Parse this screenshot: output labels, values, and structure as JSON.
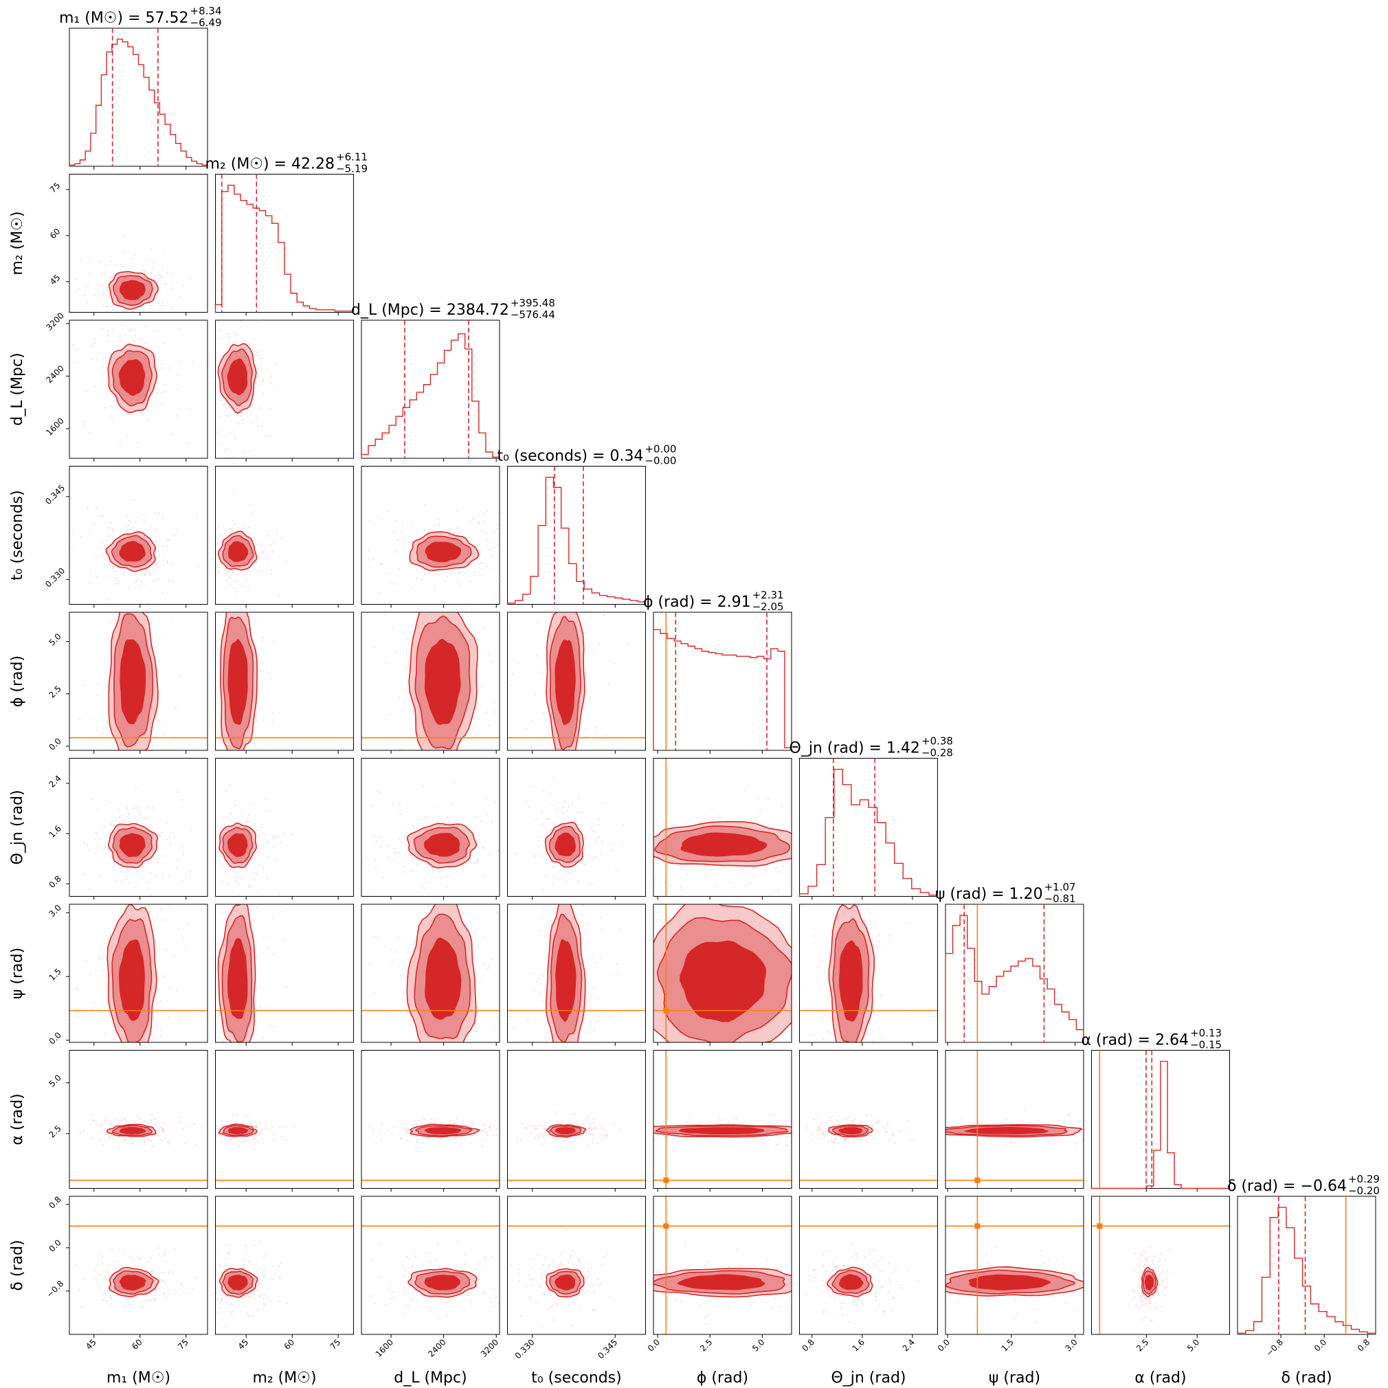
{
  "chart_data": {
    "type": "corner",
    "colors": {
      "posterior": "#d62728",
      "truth": "#ff7f0e",
      "quantile": "#d62728"
    },
    "parameters": [
      {
        "key": "m1",
        "axis_label": "m₁ (M☉)",
        "title_main": "m₁ (M☉) = 57.52",
        "title_sup": "+8.34",
        "title_sub": "−6.49",
        "median": 57.52,
        "plus": 8.34,
        "minus": 6.49,
        "range": [
          37,
          82
        ],
        "ticks": [
          45,
          60,
          75
        ],
        "tick_labels": [
          "45",
          "60",
          "75"
        ],
        "truth": null
      },
      {
        "key": "m2",
        "axis_label": "m₂ (M☉)",
        "title_main": "m₂ (M☉) = 42.28",
        "title_sup": "+6.11",
        "title_sub": "−5.19",
        "median": 42.28,
        "plus": 6.11,
        "minus": 5.19,
        "range": [
          35,
          80
        ],
        "ticks": [
          45,
          60,
          75
        ],
        "tick_labels": [
          "45",
          "60",
          "75"
        ],
        "truth": null
      },
      {
        "key": "dL",
        "axis_label": "d_L (Mpc)",
        "title_main": "d_L (Mpc) = 2384.72",
        "title_sup": "+395.48",
        "title_sub": "−576.44",
        "median": 2384.72,
        "plus": 395.48,
        "minus": 576.44,
        "range": [
          1150,
          3250
        ],
        "ticks": [
          1600,
          2400,
          3200
        ],
        "tick_labels": [
          "1600",
          "2400",
          "3200"
        ],
        "truth": null
      },
      {
        "key": "t0",
        "axis_label": "t₀ (seconds)",
        "title_main": "t₀ (seconds) = 0.34",
        "title_sup": "+0.00",
        "title_sub": "−0.00",
        "median": 0.34,
        "plus": 0.0,
        "minus": 0.0,
        "range": [
          0.3255,
          0.3505
        ],
        "ticks": [
          0.33,
          0.345
        ],
        "tick_labels": [
          "0.330",
          "0.345"
        ],
        "truth": null
      },
      {
        "key": "phi",
        "axis_label": "ϕ (rad)",
        "title_main": "ϕ (rad) = 2.91",
        "title_sup": "+2.31",
        "title_sub": "−2.05",
        "median": 2.91,
        "plus": 2.31,
        "minus": 2.05,
        "range": [
          -0.2,
          6.4
        ],
        "ticks": [
          0.0,
          2.5,
          5.0
        ],
        "tick_labels": [
          "0.0",
          "2.5",
          "5.0"
        ],
        "truth": 0.4
      },
      {
        "key": "theta",
        "axis_label": "Θ_jn (rad)",
        "title_main": "Θ_jn (rad) = 1.42",
        "title_sup": "+0.38",
        "title_sub": "−0.28",
        "median": 1.42,
        "plus": 0.38,
        "minus": 0.28,
        "range": [
          0.6,
          2.8
        ],
        "ticks": [
          0.8,
          1.6,
          2.4
        ],
        "tick_labels": [
          "0.8",
          "1.6",
          "2.4"
        ],
        "truth": null
      },
      {
        "key": "psi",
        "axis_label": "ψ (rad)",
        "title_main": "ψ (rad) = 1.20",
        "title_sup": "+1.07",
        "title_sub": "−0.81",
        "median": 1.2,
        "plus": 1.07,
        "minus": 0.81,
        "range": [
          -0.05,
          3.2
        ],
        "ticks": [
          0.0,
          1.5,
          3.0
        ],
        "tick_labels": [
          "0.0",
          "1.5",
          "3.0"
        ],
        "truth": 0.7
      },
      {
        "key": "alpha",
        "axis_label": "α (rad)",
        "title_main": "α (rad) = 2.64",
        "title_sup": "+0.13",
        "title_sub": "−0.15",
        "median": 2.64,
        "plus": 0.13,
        "minus": 0.15,
        "range": [
          -0.2,
          6.6
        ],
        "ticks": [
          2.5,
          5.0
        ],
        "tick_labels": [
          "2.5",
          "5.0"
        ],
        "truth": 0.2
      },
      {
        "key": "delta",
        "axis_label": "δ (rad)",
        "title_main": "δ (rad) = −0.64",
        "title_sup": "+0.29",
        "title_sub": "−0.20",
        "median": -0.64,
        "plus": 0.29,
        "minus": 0.2,
        "range": [
          -1.6,
          0.95
        ],
        "ticks": [
          -0.8,
          0.0,
          0.8
        ],
        "tick_labels": [
          "−0.8",
          "0.0",
          "0.8"
        ],
        "truth": 0.4
      }
    ],
    "histograms": {
      "m1": [
        0.01,
        0.02,
        0.05,
        0.12,
        0.26,
        0.48,
        0.72,
        0.9,
        0.96,
        1.0,
        0.98,
        0.94,
        0.88,
        0.8,
        0.7,
        0.6,
        0.5,
        0.41,
        0.33,
        0.25,
        0.18,
        0.12,
        0.07,
        0.04,
        0.02,
        0.01
      ],
      "m2": [
        0.06,
        0.95,
        1.0,
        0.93,
        0.88,
        0.85,
        0.82,
        0.8,
        0.76,
        0.7,
        0.55,
        0.3,
        0.15,
        0.08,
        0.05,
        0.03,
        0.02,
        0.02,
        0.02,
        0.01,
        0.01,
        0.01
      ],
      "dL": [
        0.03,
        0.1,
        0.15,
        0.2,
        0.26,
        0.33,
        0.4,
        0.46,
        0.52,
        0.58,
        0.66,
        0.75,
        0.85,
        0.93,
        0.98,
        0.86,
        0.45,
        0.2,
        0.05,
        0.01
      ],
      "t0": [
        0.01,
        0.03,
        0.08,
        0.22,
        0.62,
        1.0,
        0.92,
        0.6,
        0.32,
        0.18,
        0.12,
        0.09,
        0.07,
        0.06,
        0.05,
        0.04,
        0.03,
        0.02
      ],
      "phi": [
        0.95,
        0.92,
        0.88,
        0.86,
        0.84,
        0.82,
        0.8,
        0.78,
        0.77,
        0.76,
        0.75,
        0.75,
        0.74,
        0.74,
        0.73,
        0.74,
        0.72,
        0.8,
        0.78,
        0.02
      ],
      "theta": [
        0.02,
        0.08,
        0.25,
        0.62,
        1.0,
        0.88,
        0.72,
        0.76,
        0.7,
        0.58,
        0.42,
        0.26,
        0.14,
        0.06,
        0.03,
        0.01
      ],
      "psi": [
        0.7,
        0.92,
        1.0,
        0.74,
        0.48,
        0.38,
        0.44,
        0.52,
        0.56,
        0.6,
        0.64,
        0.66,
        0.6,
        0.5,
        0.42,
        0.3,
        0.24,
        0.18,
        0.1
      ],
      "alpha": [
        0.0,
        0.0,
        0.0,
        0.0,
        0.0,
        0.0,
        0.0,
        0.0,
        0.02,
        0.3,
        1.0,
        0.28,
        0.03,
        0.0,
        0.0,
        0.0,
        0.0,
        0.0,
        0.0,
        0.0
      ],
      "delta": [
        0.01,
        0.03,
        0.1,
        0.45,
        0.92,
        1.0,
        0.84,
        0.6,
        0.38,
        0.24,
        0.18,
        0.14,
        0.1,
        0.07,
        0.04,
        0.02,
        0.01
      ]
    }
  }
}
